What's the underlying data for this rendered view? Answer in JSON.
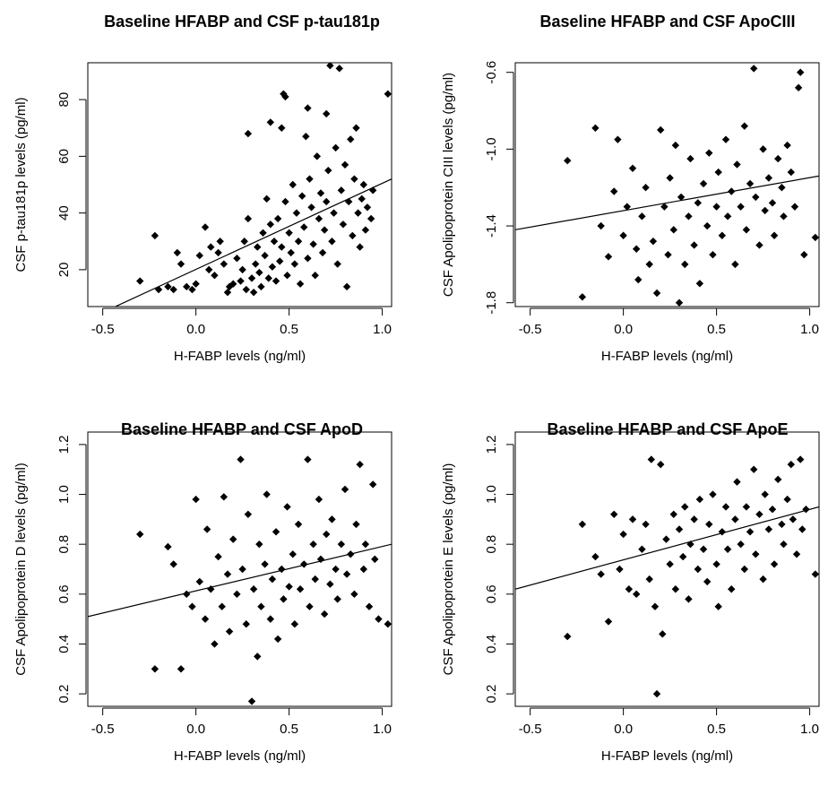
{
  "chart_data": [
    {
      "type": "scatter",
      "title": "Baseline HFABP and CSF p-tau181p",
      "xlabel": "H-FABP levels (ng/ml)",
      "ylabel": "CSF p-tau181p levels (pg/ml)",
      "xlim": [
        -0.58,
        1.05
      ],
      "ylim": [
        7,
        93
      ],
      "x_ticks": [
        -0.5,
        0.0,
        0.5,
        1.0
      ],
      "x_tick_labels": [
        "-0.5",
        "0.0",
        "0.5",
        "1.0"
      ],
      "y_ticks": [
        20,
        40,
        60,
        80
      ],
      "y_tick_labels": [
        "20",
        "40",
        "60",
        "80"
      ],
      "y_tick_rotated": true,
      "fit_line": {
        "x": [
          -0.58,
          1.05
        ],
        "y": [
          2.5,
          52
        ]
      },
      "points": [
        [
          -0.3,
          16
        ],
        [
          -0.22,
          32
        ],
        [
          -0.2,
          13
        ],
        [
          -0.15,
          14
        ],
        [
          -0.12,
          13
        ],
        [
          -0.1,
          26
        ],
        [
          -0.08,
          22
        ],
        [
          -0.05,
          14
        ],
        [
          -0.02,
          13
        ],
        [
          0.0,
          15
        ],
        [
          0.02,
          25
        ],
        [
          0.05,
          35
        ],
        [
          0.07,
          20
        ],
        [
          0.08,
          28
        ],
        [
          0.1,
          18
        ],
        [
          0.12,
          26
        ],
        [
          0.13,
          30
        ],
        [
          0.15,
          22
        ],
        [
          0.17,
          12
        ],
        [
          0.18,
          14
        ],
        [
          0.2,
          15
        ],
        [
          0.22,
          24
        ],
        [
          0.24,
          16
        ],
        [
          0.25,
          20
        ],
        [
          0.26,
          30
        ],
        [
          0.27,
          13
        ],
        [
          0.28,
          38
        ],
        [
          0.28,
          68
        ],
        [
          0.3,
          17
        ],
        [
          0.31,
          12
        ],
        [
          0.32,
          22
        ],
        [
          0.33,
          28
        ],
        [
          0.34,
          19
        ],
        [
          0.35,
          14
        ],
        [
          0.36,
          33
        ],
        [
          0.37,
          25
        ],
        [
          0.38,
          45
        ],
        [
          0.39,
          17
        ],
        [
          0.4,
          72
        ],
        [
          0.4,
          36
        ],
        [
          0.41,
          21
        ],
        [
          0.42,
          30
        ],
        [
          0.43,
          16
        ],
        [
          0.44,
          38
        ],
        [
          0.45,
          23
        ],
        [
          0.46,
          70
        ],
        [
          0.46,
          28
        ],
        [
          0.47,
          82
        ],
        [
          0.48,
          81
        ],
        [
          0.48,
          44
        ],
        [
          0.49,
          18
        ],
        [
          0.5,
          33
        ],
        [
          0.51,
          26
        ],
        [
          0.52,
          50
        ],
        [
          0.53,
          22
        ],
        [
          0.54,
          40
        ],
        [
          0.55,
          30
        ],
        [
          0.56,
          15
        ],
        [
          0.57,
          46
        ],
        [
          0.58,
          35
        ],
        [
          0.59,
          67
        ],
        [
          0.6,
          77
        ],
        [
          0.6,
          24
        ],
        [
          0.61,
          52
        ],
        [
          0.62,
          42
        ],
        [
          0.63,
          29
        ],
        [
          0.64,
          18
        ],
        [
          0.65,
          60
        ],
        [
          0.66,
          38
        ],
        [
          0.67,
          47
        ],
        [
          0.68,
          26
        ],
        [
          0.69,
          34
        ],
        [
          0.7,
          75
        ],
        [
          0.7,
          44
        ],
        [
          0.71,
          55
        ],
        [
          0.72,
          92
        ],
        [
          0.73,
          30
        ],
        [
          0.74,
          40
        ],
        [
          0.75,
          63
        ],
        [
          0.76,
          22
        ],
        [
          0.77,
          91
        ],
        [
          0.78,
          48
        ],
        [
          0.79,
          36
        ],
        [
          0.8,
          57
        ],
        [
          0.81,
          14
        ],
        [
          0.82,
          44
        ],
        [
          0.83,
          66
        ],
        [
          0.84,
          32
        ],
        [
          0.85,
          52
        ],
        [
          0.86,
          70
        ],
        [
          0.87,
          40
        ],
        [
          0.88,
          28
        ],
        [
          0.89,
          45
        ],
        [
          0.9,
          50
        ],
        [
          0.91,
          34
        ],
        [
          0.92,
          42
        ],
        [
          0.94,
          38
        ],
        [
          0.95,
          48
        ],
        [
          1.03,
          82
        ]
      ]
    },
    {
      "type": "scatter",
      "title": "Baseline HFABP and CSF ApoCIII",
      "xlabel": "H-FABP levels (ng/ml)",
      "ylabel": "CSF Apolipoprotein CIII levels (pg/ml)",
      "xlim": [
        -0.58,
        1.05
      ],
      "ylim": [
        -1.82,
        -0.55
      ],
      "x_ticks": [
        -0.5,
        0.0,
        0.5,
        1.0
      ],
      "x_tick_labels": [
        "-0.5",
        "0.0",
        "0.5",
        "1.0"
      ],
      "y_ticks": [
        -1.8,
        -1.4,
        -1.0,
        -0.6
      ],
      "y_tick_labels": [
        "-1.8",
        "-1.4",
        "-1.0",
        "-0.6"
      ],
      "y_tick_rotated": true,
      "fit_line": {
        "x": [
          -0.58,
          1.05
        ],
        "y": [
          -1.42,
          -1.14
        ]
      },
      "points": [
        [
          -0.3,
          -1.06
        ],
        [
          -0.22,
          -1.77
        ],
        [
          -0.15,
          -0.89
        ],
        [
          -0.12,
          -1.4
        ],
        [
          -0.08,
          -1.56
        ],
        [
          -0.05,
          -1.22
        ],
        [
          -0.03,
          -0.95
        ],
        [
          0.0,
          -1.45
        ],
        [
          0.02,
          -1.3
        ],
        [
          0.05,
          -1.1
        ],
        [
          0.07,
          -1.52
        ],
        [
          0.08,
          -1.68
        ],
        [
          0.1,
          -1.35
        ],
        [
          0.12,
          -1.2
        ],
        [
          0.14,
          -1.6
        ],
        [
          0.16,
          -1.48
        ],
        [
          0.18,
          -1.75
        ],
        [
          0.2,
          -0.9
        ],
        [
          0.22,
          -1.3
        ],
        [
          0.24,
          -1.55
        ],
        [
          0.25,
          -1.15
        ],
        [
          0.27,
          -1.42
        ],
        [
          0.28,
          -0.98
        ],
        [
          0.3,
          -1.8
        ],
        [
          0.31,
          -1.25
        ],
        [
          0.33,
          -1.6
        ],
        [
          0.35,
          -1.35
        ],
        [
          0.36,
          -1.05
        ],
        [
          0.38,
          -1.5
        ],
        [
          0.4,
          -1.28
        ],
        [
          0.41,
          -1.7
        ],
        [
          0.43,
          -1.18
        ],
        [
          0.45,
          -1.4
        ],
        [
          0.46,
          -1.02
        ],
        [
          0.48,
          -1.55
        ],
        [
          0.5,
          -1.3
        ],
        [
          0.51,
          -1.12
        ],
        [
          0.53,
          -1.45
        ],
        [
          0.55,
          -0.95
        ],
        [
          0.56,
          -1.35
        ],
        [
          0.58,
          -1.22
        ],
        [
          0.6,
          -1.6
        ],
        [
          0.61,
          -1.08
        ],
        [
          0.63,
          -1.3
        ],
        [
          0.65,
          -0.88
        ],
        [
          0.66,
          -1.42
        ],
        [
          0.68,
          -1.18
        ],
        [
          0.7,
          -0.58
        ],
        [
          0.71,
          -1.25
        ],
        [
          0.73,
          -1.5
        ],
        [
          0.75,
          -1.0
        ],
        [
          0.76,
          -1.32
        ],
        [
          0.78,
          -1.15
        ],
        [
          0.8,
          -1.28
        ],
        [
          0.81,
          -1.45
        ],
        [
          0.83,
          -1.05
        ],
        [
          0.85,
          -1.2
        ],
        [
          0.86,
          -1.35
        ],
        [
          0.88,
          -0.98
        ],
        [
          0.9,
          -1.12
        ],
        [
          0.92,
          -1.3
        ],
        [
          0.94,
          -0.68
        ],
        [
          0.95,
          -0.6
        ],
        [
          0.97,
          -1.55
        ],
        [
          1.03,
          -1.46
        ]
      ]
    },
    {
      "type": "scatter",
      "title": "Baseline HFABP and CSF ApoD",
      "xlabel": "H-FABP levels (ng/ml)",
      "ylabel": "CSF Apolipoprotein D levels (pg/ml)",
      "xlim": [
        -0.58,
        1.05
      ],
      "ylim": [
        0.15,
        1.25
      ],
      "x_ticks": [
        -0.5,
        0.0,
        0.5,
        1.0
      ],
      "x_tick_labels": [
        "-0.5",
        "0.0",
        "0.5",
        "1.0"
      ],
      "y_ticks": [
        0.2,
        0.4,
        0.6,
        0.8,
        1.0,
        1.2
      ],
      "y_tick_labels": [
        "0.2",
        "0.4",
        "0.6",
        "0.8",
        "1.0",
        "1.2"
      ],
      "y_tick_rotated": true,
      "fit_line": {
        "x": [
          -0.58,
          1.05
        ],
        "y": [
          0.51,
          0.8
        ]
      },
      "points": [
        [
          -0.3,
          0.84
        ],
        [
          -0.22,
          0.3
        ],
        [
          -0.15,
          0.79
        ],
        [
          -0.12,
          0.72
        ],
        [
          -0.08,
          0.3
        ],
        [
          -0.05,
          0.6
        ],
        [
          -0.02,
          0.55
        ],
        [
          0.0,
          0.98
        ],
        [
          0.02,
          0.65
        ],
        [
          0.05,
          0.5
        ],
        [
          0.06,
          0.86
        ],
        [
          0.08,
          0.62
        ],
        [
          0.1,
          0.4
        ],
        [
          0.12,
          0.75
        ],
        [
          0.14,
          0.55
        ],
        [
          0.15,
          0.99
        ],
        [
          0.17,
          0.68
        ],
        [
          0.18,
          0.45
        ],
        [
          0.2,
          0.82
        ],
        [
          0.22,
          0.6
        ],
        [
          0.24,
          1.14
        ],
        [
          0.25,
          0.7
        ],
        [
          0.27,
          0.48
        ],
        [
          0.28,
          0.92
        ],
        [
          0.3,
          0.17
        ],
        [
          0.31,
          0.62
        ],
        [
          0.33,
          0.35
        ],
        [
          0.34,
          0.8
        ],
        [
          0.35,
          0.55
        ],
        [
          0.37,
          0.72
        ],
        [
          0.38,
          1.0
        ],
        [
          0.4,
          0.5
        ],
        [
          0.41,
          0.66
        ],
        [
          0.43,
          0.85
        ],
        [
          0.44,
          0.42
        ],
        [
          0.46,
          0.7
        ],
        [
          0.47,
          0.58
        ],
        [
          0.49,
          0.95
        ],
        [
          0.5,
          0.63
        ],
        [
          0.52,
          0.76
        ],
        [
          0.53,
          0.48
        ],
        [
          0.55,
          0.88
        ],
        [
          0.56,
          0.62
        ],
        [
          0.58,
          0.72
        ],
        [
          0.6,
          1.14
        ],
        [
          0.61,
          0.55
        ],
        [
          0.63,
          0.8
        ],
        [
          0.64,
          0.66
        ],
        [
          0.66,
          0.98
        ],
        [
          0.67,
          0.74
        ],
        [
          0.69,
          0.52
        ],
        [
          0.7,
          0.84
        ],
        [
          0.72,
          0.64
        ],
        [
          0.73,
          0.9
        ],
        [
          0.75,
          0.7
        ],
        [
          0.76,
          0.58
        ],
        [
          0.78,
          0.8
        ],
        [
          0.8,
          1.02
        ],
        [
          0.81,
          0.68
        ],
        [
          0.83,
          0.76
        ],
        [
          0.85,
          0.6
        ],
        [
          0.86,
          0.88
        ],
        [
          0.88,
          1.12
        ],
        [
          0.9,
          0.7
        ],
        [
          0.91,
          0.8
        ],
        [
          0.93,
          0.55
        ],
        [
          0.95,
          1.04
        ],
        [
          0.96,
          0.74
        ],
        [
          0.98,
          0.5
        ],
        [
          1.03,
          0.48
        ]
      ]
    },
    {
      "type": "scatter",
      "title": "Baseline HFABP and CSF ApoE",
      "xlabel": "H-FABP levels (ng/ml)",
      "ylabel": "CSF Apolipoprotein E levels (pg/ml)",
      "xlim": [
        -0.58,
        1.05
      ],
      "ylim": [
        0.15,
        1.25
      ],
      "x_ticks": [
        -0.5,
        0.0,
        0.5,
        1.0
      ],
      "x_tick_labels": [
        "-0.5",
        "0.0",
        "0.5",
        "1.0"
      ],
      "y_ticks": [
        0.2,
        0.4,
        0.6,
        0.8,
        1.0,
        1.2
      ],
      "y_tick_labels": [
        "0.2",
        "0.4",
        "0.6",
        "0.8",
        "1.0",
        "1.2"
      ],
      "y_tick_rotated": true,
      "fit_line": {
        "x": [
          -0.58,
          1.05
        ],
        "y": [
          0.62,
          0.95
        ]
      },
      "points": [
        [
          -0.3,
          0.43
        ],
        [
          -0.22,
          0.88
        ],
        [
          -0.15,
          0.75
        ],
        [
          -0.12,
          0.68
        ],
        [
          -0.08,
          0.49
        ],
        [
          -0.05,
          0.92
        ],
        [
          -0.02,
          0.7
        ],
        [
          0.0,
          0.84
        ],
        [
          0.03,
          0.62
        ],
        [
          0.05,
          0.9
        ],
        [
          0.07,
          0.6
        ],
        [
          0.1,
          0.78
        ],
        [
          0.12,
          0.88
        ],
        [
          0.14,
          0.66
        ],
        [
          0.15,
          1.14
        ],
        [
          0.17,
          0.55
        ],
        [
          0.18,
          0.2
        ],
        [
          0.2,
          1.12
        ],
        [
          0.21,
          0.44
        ],
        [
          0.23,
          0.82
        ],
        [
          0.25,
          0.72
        ],
        [
          0.27,
          0.92
        ],
        [
          0.28,
          0.62
        ],
        [
          0.3,
          0.86
        ],
        [
          0.32,
          0.75
        ],
        [
          0.33,
          0.95
        ],
        [
          0.35,
          0.58
        ],
        [
          0.36,
          0.8
        ],
        [
          0.38,
          0.9
        ],
        [
          0.4,
          0.7
        ],
        [
          0.41,
          0.98
        ],
        [
          0.43,
          0.78
        ],
        [
          0.45,
          0.65
        ],
        [
          0.46,
          0.88
        ],
        [
          0.48,
          1.0
        ],
        [
          0.5,
          0.72
        ],
        [
          0.51,
          0.55
        ],
        [
          0.53,
          0.85
        ],
        [
          0.55,
          0.95
        ],
        [
          0.56,
          0.78
        ],
        [
          0.58,
          0.62
        ],
        [
          0.6,
          0.9
        ],
        [
          0.61,
          1.05
        ],
        [
          0.63,
          0.8
        ],
        [
          0.65,
          0.7
        ],
        [
          0.66,
          0.95
        ],
        [
          0.68,
          0.85
        ],
        [
          0.7,
          1.1
        ],
        [
          0.71,
          0.76
        ],
        [
          0.73,
          0.92
        ],
        [
          0.75,
          0.66
        ],
        [
          0.76,
          1.0
        ],
        [
          0.78,
          0.86
        ],
        [
          0.8,
          0.94
        ],
        [
          0.81,
          0.72
        ],
        [
          0.83,
          1.06
        ],
        [
          0.85,
          0.88
        ],
        [
          0.86,
          0.8
        ],
        [
          0.88,
          0.98
        ],
        [
          0.9,
          1.12
        ],
        [
          0.91,
          0.9
        ],
        [
          0.93,
          0.76
        ],
        [
          0.95,
          1.14
        ],
        [
          0.96,
          0.86
        ],
        [
          0.98,
          0.94
        ],
        [
          1.03,
          0.68
        ]
      ]
    }
  ]
}
